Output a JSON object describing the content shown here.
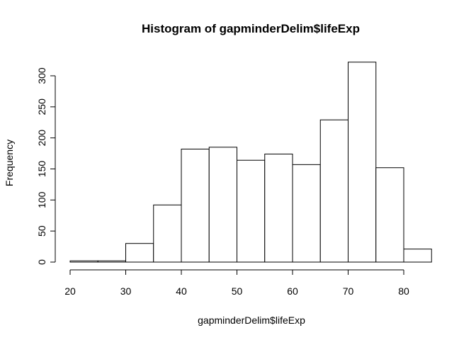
{
  "chart_data": {
    "type": "bar",
    "title": "Histogram of gapminderDelim$lifeExp",
    "xlabel": "gapminderDelim$lifeExp",
    "ylabel": "Frequency",
    "bin_edges": [
      20,
      25,
      30,
      35,
      40,
      45,
      50,
      55,
      60,
      65,
      70,
      75,
      80,
      85
    ],
    "categories": [
      "20-25",
      "25-30",
      "30-35",
      "35-40",
      "40-45",
      "45-50",
      "50-55",
      "55-60",
      "60-65",
      "65-70",
      "70-75",
      "75-80",
      "80-85"
    ],
    "values": [
      2,
      2,
      30,
      92,
      182,
      185,
      164,
      174,
      157,
      229,
      322,
      152,
      21
    ],
    "xlim": [
      20,
      85
    ],
    "ylim": [
      0,
      322
    ],
    "x_ticks": [
      20,
      30,
      40,
      50,
      60,
      70,
      80
    ],
    "y_ticks": [
      0,
      50,
      100,
      150,
      200,
      250,
      300
    ],
    "x_tick_labels": [
      "20",
      "30",
      "40",
      "50",
      "60",
      "70",
      "80"
    ],
    "y_tick_labels": [
      "0",
      "50",
      "100",
      "150",
      "200",
      "250",
      "300"
    ],
    "bar_fill": "#ffffff",
    "bar_stroke": "#000000",
    "grid": false,
    "legend": "none"
  }
}
